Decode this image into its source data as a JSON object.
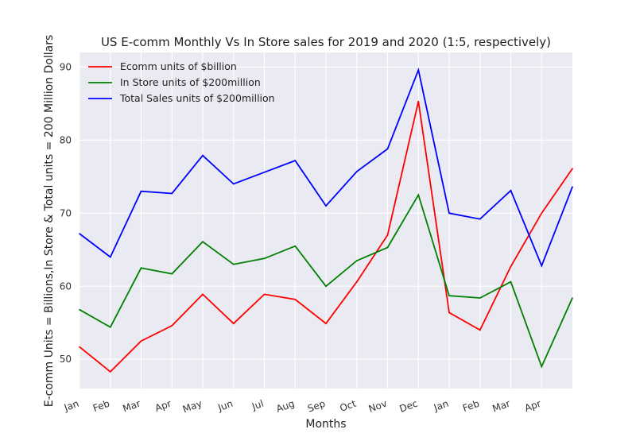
{
  "chart_data": {
    "type": "line",
    "title": "US E-comm Monthly Vs In Store sales for 2019 and 2020 (1:5, respectively)",
    "xlabel": "Months",
    "ylabel": "E-comm Units = Billions,In Store & Total units = 200 Million Dollars",
    "categories": [
      "Jan",
      "Feb",
      "Mar",
      "Apr",
      "May",
      "Jun",
      "Jul",
      "Aug",
      "Sep",
      "Oct",
      "Nov",
      "Dec",
      "Jan",
      "Feb",
      "Mar",
      "Apr",
      ""
    ],
    "x_tick_labels": [
      "Jan",
      "Feb",
      "Mar",
      "Apr",
      "May",
      "Jun",
      "Jul",
      "Aug",
      "Sep",
      "Oct",
      "Nov",
      "Dec",
      "Jan",
      "Feb",
      "Mar",
      "Apr"
    ],
    "ylim": [
      46,
      92
    ],
    "yticks": [
      50,
      60,
      70,
      80,
      90
    ],
    "grid": true,
    "legend_position": "top-left",
    "series": [
      {
        "name": "Ecomm units of $billion",
        "color": "#ff0000",
        "values": [
          51.7,
          48.3,
          52.5,
          54.6,
          58.9,
          54.9,
          58.9,
          58.2,
          54.9,
          60.6,
          67.0,
          85.3,
          56.4,
          54.0,
          62.7,
          70.0,
          76.1
        ]
      },
      {
        "name": "In Store units of $200million",
        "color": "#008000",
        "values": [
          56.8,
          54.4,
          62.5,
          61.7,
          66.1,
          63.0,
          63.8,
          65.5,
          60.0,
          63.5,
          65.3,
          72.5,
          58.7,
          58.4,
          60.6,
          49.0,
          58.4
        ]
      },
      {
        "name": "Total Sales units of $200million",
        "color": "#0000ff",
        "values": [
          67.2,
          64.0,
          73.0,
          72.7,
          77.9,
          74.0,
          75.6,
          77.2,
          71.0,
          75.7,
          78.8,
          89.6,
          70.0,
          69.2,
          73.1,
          62.8,
          73.6
        ]
      }
    ]
  }
}
